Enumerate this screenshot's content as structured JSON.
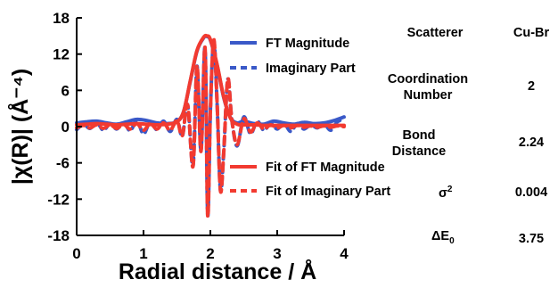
{
  "chart_data": {
    "type": "line",
    "xlabel": "Radial distance / Å",
    "ylabel": "|χ(R)| (Å⁻⁴)",
    "xlim": [
      0,
      4
    ],
    "ylim": [
      -18,
      18
    ],
    "xticks": [
      "0",
      "1",
      "2",
      "3",
      "4"
    ],
    "yticks": [
      "18",
      "12",
      "6",
      "0",
      "-6",
      "-12",
      "-18"
    ],
    "grid": false,
    "legend_position": "inside-right",
    "series": [
      {
        "name": "FT Magnitude",
        "color": "#3a59c8",
        "style": "solid",
        "x": [
          0,
          0.15,
          0.3,
          0.45,
          0.6,
          0.75,
          0.9,
          1.05,
          1.2,
          1.35,
          1.5,
          1.6,
          1.7,
          1.8,
          1.9,
          1.95,
          2.0,
          2.1,
          2.2,
          2.3,
          2.4,
          2.5,
          2.65,
          2.8,
          2.95,
          3.1,
          3.25,
          3.4,
          3.55,
          3.7,
          3.85,
          4.0
        ],
        "y": [
          0.6,
          0.8,
          0.9,
          0.6,
          0.4,
          0.8,
          1.2,
          1.0,
          0.6,
          0.5,
          0.8,
          2.5,
          7.5,
          12.5,
          14.7,
          14.9,
          14.3,
          10.2,
          4.8,
          1.5,
          0.6,
          0.9,
          0.5,
          0.4,
          0.9,
          0.6,
          0.4,
          0.7,
          0.5,
          0.6,
          1.0,
          1.6
        ]
      },
      {
        "name": "Imaginary Part",
        "color": "#3a59c8",
        "style": "dashed",
        "x": [
          0,
          0.1,
          0.2,
          0.3,
          0.4,
          0.5,
          0.6,
          0.7,
          0.8,
          0.9,
          1.0,
          1.1,
          1.2,
          1.3,
          1.4,
          1.5,
          1.58,
          1.66,
          1.74,
          1.8,
          1.86,
          1.92,
          1.96,
          2.0,
          2.05,
          2.1,
          2.15,
          2.2,
          2.26,
          2.32,
          2.4,
          2.5,
          2.6,
          2.7,
          2.8,
          2.9,
          3.0,
          3.1,
          3.2,
          3.3,
          3.4,
          3.5,
          3.6,
          3.7,
          3.8,
          3.9,
          4.0
        ],
        "y": [
          -0.5,
          0.4,
          -0.3,
          0.7,
          -0.6,
          0.5,
          -0.4,
          0.8,
          -0.7,
          1.0,
          -1.2,
          0.8,
          -0.5,
          0.9,
          -0.8,
          1.2,
          -1.6,
          3.6,
          -6.5,
          10.0,
          -4.0,
          13.0,
          -14.6,
          2.5,
          14.2,
          4.0,
          -10.5,
          -4.2,
          7.8,
          1.2,
          -3.2,
          1.6,
          -1.2,
          0.9,
          -0.6,
          0.5,
          -0.4,
          0.6,
          -0.8,
          0.5,
          -0.4,
          0.3,
          -0.2,
          0.5,
          -0.6,
          0.8,
          1.2
        ]
      },
      {
        "name": "Fit of FT Magnitude",
        "color": "#f23a30",
        "style": "solid",
        "x": [
          0,
          0.15,
          0.3,
          0.45,
          0.6,
          0.75,
          0.9,
          1.05,
          1.2,
          1.35,
          1.5,
          1.6,
          1.7,
          1.8,
          1.9,
          1.95,
          2.0,
          2.1,
          2.2,
          2.3,
          2.4,
          2.5,
          2.65,
          2.8,
          2.95,
          3.1,
          3.25,
          3.4,
          3.55,
          3.7,
          3.85,
          4.0
        ],
        "y": [
          0.3,
          0.4,
          0.5,
          0.4,
          0.3,
          0.4,
          0.5,
          0.4,
          0.3,
          0.4,
          0.8,
          2.5,
          7.6,
          12.6,
          14.8,
          15.0,
          14.4,
          10.3,
          4.9,
          1.4,
          0.4,
          0.3,
          0.3,
          0.2,
          0.2,
          0.2,
          0.2,
          0.2,
          0.2,
          0.2,
          0.2,
          0.2
        ]
      },
      {
        "name": "Fit of Imaginary Part",
        "color": "#f23a30",
        "style": "dashed",
        "x": [
          0,
          0.1,
          0.2,
          0.3,
          0.4,
          0.5,
          0.6,
          0.7,
          0.8,
          0.9,
          1.0,
          1.1,
          1.2,
          1.3,
          1.4,
          1.5,
          1.58,
          1.66,
          1.74,
          1.8,
          1.86,
          1.92,
          1.96,
          2.0,
          2.05,
          2.1,
          2.15,
          2.2,
          2.26,
          2.32,
          2.4,
          2.5,
          2.6,
          2.7,
          2.8,
          2.9,
          3.0,
          3.1,
          3.2,
          3.3,
          3.4,
          3.5,
          3.6,
          3.7,
          3.8,
          3.9,
          4.0
        ],
        "y": [
          -0.2,
          0.2,
          -0.2,
          0.3,
          -0.3,
          0.3,
          -0.3,
          0.4,
          -0.4,
          0.5,
          -0.6,
          0.5,
          -0.4,
          0.6,
          -0.6,
          1.0,
          -1.5,
          3.6,
          -6.6,
          10.1,
          -4.1,
          13.1,
          -14.8,
          2.4,
          14.4,
          4.1,
          -10.6,
          -4.3,
          7.9,
          1.2,
          -3.0,
          1.3,
          -0.9,
          0.6,
          -0.4,
          0.3,
          -0.2,
          0.2,
          -0.2,
          0.2,
          -0.1,
          0.1,
          -0.1,
          0.1,
          -0.1,
          0.1,
          0.0
        ]
      }
    ]
  },
  "table": {
    "header_label": "Scatterer",
    "header_value": "Cu-Br",
    "rows": [
      {
        "label_line1": "Coordination",
        "label_line2": "Number",
        "value": "2"
      },
      {
        "label_line1": "Bond",
        "label_line2": "Distance",
        "value": "2.24"
      },
      {
        "label": "σ",
        "label_sup": "2",
        "value": "0.004"
      },
      {
        "label": "ΔE",
        "label_sub": "0",
        "value": "3.75"
      }
    ]
  }
}
